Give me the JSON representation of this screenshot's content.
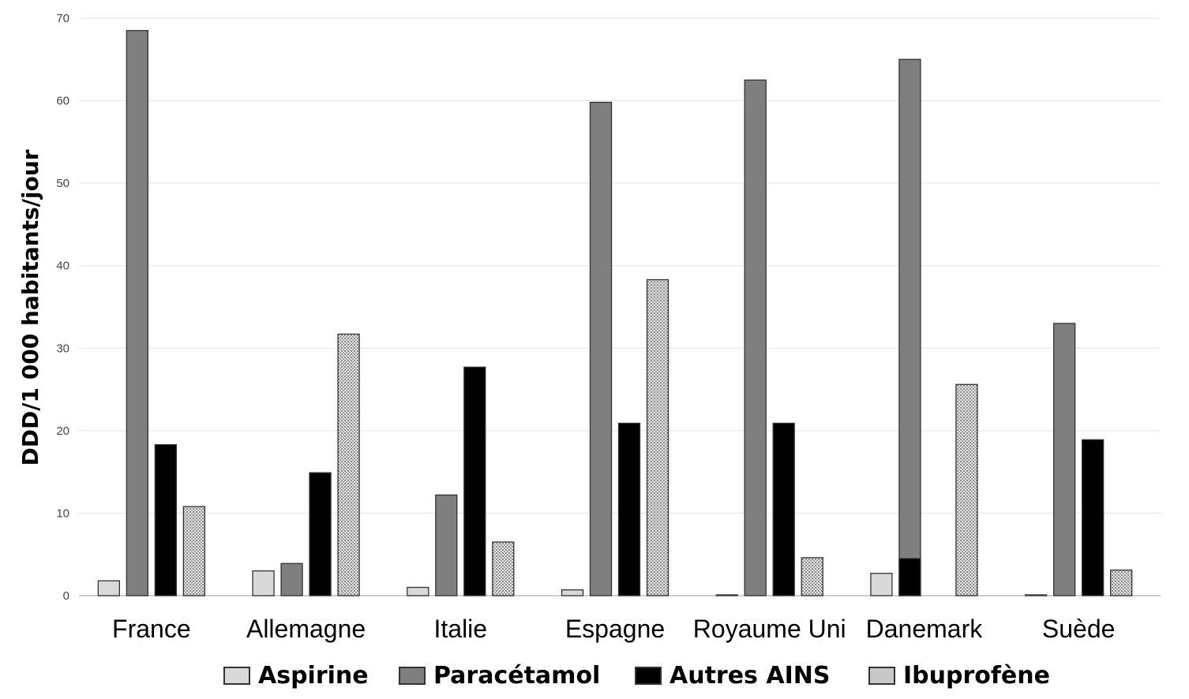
{
  "chart_data": {
    "type": "bar",
    "ylabel": "DDD/1 000 habitants/jour",
    "xlabel": "",
    "ylim": [
      0,
      70
    ],
    "yticks": [
      0,
      10,
      20,
      30,
      40,
      50,
      60,
      70
    ],
    "grid": true,
    "legend_position": "bottom",
    "categories": [
      "France",
      "Allemagne",
      "Italie",
      "Espagne",
      "Royaume Uni",
      "Danemark",
      "Suède"
    ],
    "series": [
      {
        "name": "Aspirine",
        "color": "#d9d9d9",
        "pattern": "solid",
        "values": [
          1.8,
          3.0,
          1.0,
          0.7,
          0.0,
          2.7,
          0.0
        ]
      },
      {
        "name": "Paracétamol",
        "color": "#7f7f7f",
        "pattern": "solid",
        "values": [
          68.5,
          3.9,
          12.2,
          59.8,
          62.5,
          65.0,
          33.0
        ]
      },
      {
        "name": "Autres AINS",
        "color": "#000000",
        "pattern": "solid",
        "values": [
          18.3,
          14.9,
          27.7,
          20.9,
          20.9,
          null,
          18.9
        ]
      },
      {
        "name": "Ibuprofène",
        "color": "#c8c8c8",
        "pattern": "dotted",
        "values": [
          10.8,
          31.7,
          6.5,
          38.3,
          4.6,
          25.6,
          3.1
        ]
      }
    ],
    "extra_bars": [
      {
        "category": "Danemark",
        "series": "Autres AINS",
        "slot": 1,
        "value": 4.5
      }
    ]
  }
}
